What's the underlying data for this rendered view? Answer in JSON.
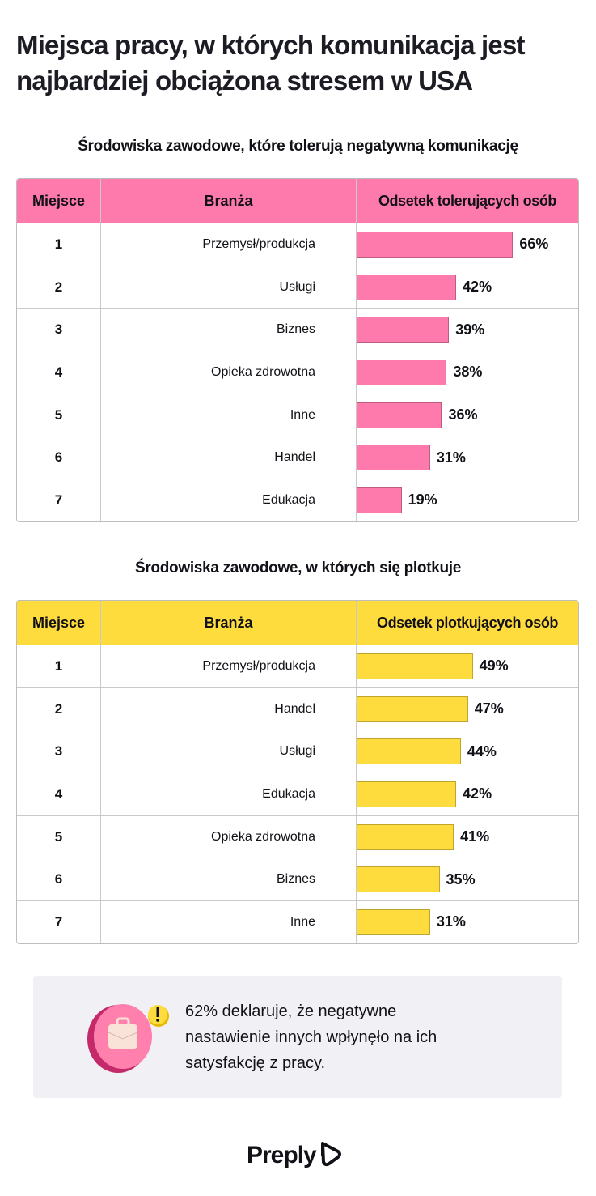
{
  "title": "Miejsca pracy, w których komunikacja jest najbardziej obciążona stresem w USA",
  "chart_data": [
    {
      "type": "table",
      "title": "Środowiska zawodowe, które tolerują negatywną komunikację",
      "headers": [
        "Miejsce",
        "Branża",
        "Odsetek tolerujących osób"
      ],
      "color": "#ff7aac",
      "ranks": [
        "1",
        "2",
        "3",
        "4",
        "5",
        "6",
        "7"
      ],
      "categories": [
        "Przemysł/produkcja",
        "Usługi",
        "Biznes",
        "Opieka zdrowotna",
        "Inne",
        "Handel",
        "Edukacja"
      ],
      "values": [
        66,
        42,
        39,
        38,
        36,
        31,
        19
      ],
      "labels": [
        "66%",
        "42%",
        "39%",
        "38%",
        "36%",
        "31%",
        "19%"
      ]
    },
    {
      "type": "table",
      "title": "Środowiska zawodowe, w których się plotkuje",
      "headers": [
        "Miejsce",
        "Branża",
        "Odsetek plotkujących osób"
      ],
      "color": "#ffdc3e",
      "ranks": [
        "1",
        "2",
        "3",
        "4",
        "5",
        "6",
        "7"
      ],
      "categories": [
        "Przemysł/produkcja",
        "Handel",
        "Usługi",
        "Edukacja",
        "Opieka zdrowotna",
        "Biznes",
        "Inne"
      ],
      "values": [
        49,
        47,
        44,
        42,
        41,
        35,
        31
      ],
      "labels": [
        "49%",
        "47%",
        "44%",
        "42%",
        "41%",
        "35%",
        "31%"
      ]
    }
  ],
  "callout": {
    "text": "62% deklaruje, że negatywne nastawienie innych wpłynęło na ich satysfakcję z pracy.",
    "icon": "briefcase-warning-icon"
  },
  "logo": "Preply"
}
